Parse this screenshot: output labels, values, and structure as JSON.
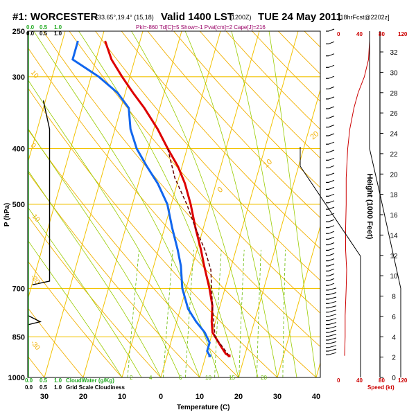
{
  "header": {
    "station": "#1: WORCESTER",
    "coords": "-33.65°,19.4° (15,18)",
    "valid": "Valid 1400 LST",
    "utc": "(1200Z)",
    "date": "TUE 24 May 2011",
    "run": "[18hrFcst@2202z]",
    "indices": "Pkl=-860 Td[C]=5 Show=-1 Pvat[cm]=2 Cape[J]=216"
  },
  "cloud_scales": {
    "top_green": [
      "0.0",
      "0.5",
      "1.0"
    ],
    "top_black": [
      "0.0",
      "0.5",
      "1.0"
    ],
    "bottom_green": [
      "0.0",
      "0.5",
      "1.0"
    ],
    "bottom_black": [
      "0.0",
      "0.5",
      "1.0"
    ],
    "cloudwater_label": "CloudWater (g/Kg)",
    "cloudiness_label": "Grid Scale Cloudiness"
  },
  "speed_scale": {
    "top_left": "0",
    "top_mid": "40",
    "top_mid2": "80",
    "top_right": "120",
    "bottom_left": "0",
    "bottom_mid": "40",
    "bottom_mid2": "80",
    "bottom_right": "120",
    "label": "Speed (kt)"
  },
  "isotherm_labels": [
    "0",
    "10",
    "20",
    "30"
  ],
  "mixing_ratio_labels": [
    "2",
    "4",
    "6",
    "10",
    "15",
    "20"
  ],
  "dry_adiabat_labels": [
    "10",
    "0",
    "-10",
    "-20",
    "-30",
    "-40",
    "-50"
  ],
  "colors": {
    "temperature": "#dd0000",
    "dewpoint": "#1166ee",
    "parcel": "#660000",
    "isobar": "#f2c200",
    "dry_adiabat": "#f2b000",
    "moist_adiabat": "#99cc00",
    "mixing_ratio": "#66bb00",
    "height": "#cc0000"
  },
  "chart_data": {
    "type": "line",
    "title": "#1: WORCESTER",
    "xlabel": "Temperature (C)",
    "ylabel": "P (hPa)",
    "xlim": [
      -40,
      40
    ],
    "ylim": [
      1000,
      250
    ],
    "y_scale": "log",
    "grid": true,
    "x_ticks": [
      "30",
      "20",
      "10",
      "0",
      "10",
      "20",
      "30",
      "40"
    ],
    "y_ticks": [
      "250",
      "300",
      "400",
      "500",
      "700",
      "850",
      "1000"
    ],
    "right_axis": {
      "label": "Height (1000 Feet)",
      "ticks": [
        "0",
        "2",
        "4",
        "6",
        "8",
        "10",
        "12",
        "14",
        "16",
        "18",
        "20",
        "22",
        "24",
        "26",
        "28",
        "30",
        "32"
      ]
    },
    "series": [
      {
        "key": "temperature",
        "points": [
          [
            16,
            917
          ],
          [
            15,
            910
          ],
          [
            13,
            880
          ],
          [
            10,
            835
          ],
          [
            9,
            800
          ],
          [
            8,
            750
          ],
          [
            6,
            700
          ],
          [
            3,
            640
          ],
          [
            1,
            600
          ],
          [
            -2,
            550
          ],
          [
            -5,
            500
          ],
          [
            -8,
            460
          ],
          [
            -11,
            430
          ],
          [
            -15,
            400
          ],
          [
            -19,
            370
          ],
          [
            -24,
            340
          ],
          [
            -28,
            320
          ],
          [
            -32,
            300
          ],
          [
            -36,
            280
          ],
          [
            -39,
            260
          ]
        ]
      },
      {
        "key": "dewpoint",
        "points": [
          [
            11,
            917
          ],
          [
            10,
            900
          ],
          [
            10,
            870
          ],
          [
            8,
            835
          ],
          [
            5,
            800
          ],
          [
            2,
            760
          ],
          [
            -1,
            700
          ],
          [
            -3,
            640
          ],
          [
            -5,
            600
          ],
          [
            -8,
            550
          ],
          [
            -11,
            500
          ],
          [
            -15,
            460
          ],
          [
            -19,
            430
          ],
          [
            -23,
            400
          ],
          [
            -26,
            370
          ],
          [
            -28,
            340
          ],
          [
            -32,
            320
          ],
          [
            -38,
            300
          ],
          [
            -46,
            280
          ],
          [
            -46,
            260
          ]
        ]
      },
      {
        "key": "parcel",
        "points": [
          [
            16,
            917
          ],
          [
            11,
            850
          ],
          [
            8,
            750
          ],
          [
            5,
            650
          ],
          [
            2,
            600
          ],
          [
            -2,
            550
          ],
          [
            -6,
            500
          ],
          [
            -11,
            450
          ],
          [
            -15,
            400
          ]
        ]
      }
    ],
    "cloud_profile": [
      [
        0.5,
        330
      ],
      [
        0.7,
        370
      ],
      [
        0.7,
        680
      ],
      [
        0.15,
        690
      ]
    ],
    "cloud_profile2": [
      [
        0.0,
        780
      ],
      [
        0.4,
        800
      ],
      [
        0.0,
        810
      ]
    ],
    "speed_profile": [
      [
        12,
        917
      ],
      [
        13,
        850
      ],
      [
        13,
        780
      ],
      [
        15,
        700
      ],
      [
        16,
        650
      ],
      [
        14,
        600
      ],
      [
        14,
        550
      ],
      [
        15,
        500
      ],
      [
        15,
        450
      ],
      [
        18,
        400
      ],
      [
        22,
        370
      ],
      [
        30,
        340
      ],
      [
        38,
        320
      ],
      [
        50,
        300
      ],
      [
        58,
        280
      ],
      [
        60,
        260
      ]
    ],
    "speed_limit": [
      [
        120,
        1000
      ],
      [
        120,
        700
      ],
      [
        80,
        480
      ],
      [
        60,
        400
      ],
      [
        60,
        250
      ]
    ]
  }
}
